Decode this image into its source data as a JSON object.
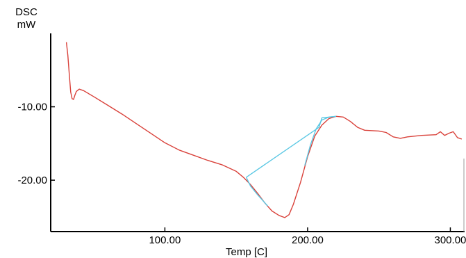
{
  "chart_data": {
    "type": "line",
    "ylabel": "DSC",
    "yunit": "mW",
    "xlabel": "Temp [C]",
    "xlim": [
      20,
      310
    ],
    "ylim": [
      -27,
      0
    ],
    "x_ticks": [
      100,
      200,
      300
    ],
    "x_tick_labels": [
      "100.00",
      "200.00",
      "300.00"
    ],
    "y_ticks": [
      -10,
      -20
    ],
    "y_tick_labels": [
      "-10.00",
      "-20.00"
    ],
    "grid": false,
    "legend": "none",
    "series": [
      {
        "color": "#d9413a",
        "points": [
          [
            31,
            -1.2
          ],
          [
            32,
            -3.0
          ],
          [
            33,
            -5.5
          ],
          [
            34,
            -8.0
          ],
          [
            35,
            -8.9
          ],
          [
            36,
            -9.0
          ],
          [
            37,
            -8.4
          ],
          [
            38,
            -7.9
          ],
          [
            40,
            -7.6
          ],
          [
            43,
            -7.8
          ],
          [
            50,
            -8.6
          ],
          [
            60,
            -9.8
          ],
          [
            70,
            -11.0
          ],
          [
            80,
            -12.3
          ],
          [
            90,
            -13.6
          ],
          [
            100,
            -14.9
          ],
          [
            110,
            -15.9
          ],
          [
            120,
            -16.6
          ],
          [
            130,
            -17.3
          ],
          [
            140,
            -17.9
          ],
          [
            150,
            -18.8
          ],
          [
            155,
            -19.6
          ],
          [
            160,
            -20.6
          ],
          [
            165,
            -21.8
          ],
          [
            170,
            -23.1
          ],
          [
            175,
            -24.2
          ],
          [
            180,
            -24.8
          ],
          [
            184,
            -25.1
          ],
          [
            187,
            -24.7
          ],
          [
            190,
            -23.3
          ],
          [
            195,
            -20.3
          ],
          [
            200,
            -16.8
          ],
          [
            205,
            -14.0
          ],
          [
            210,
            -12.5
          ],
          [
            215,
            -11.6
          ],
          [
            220,
            -11.3
          ],
          [
            225,
            -11.4
          ],
          [
            230,
            -12.0
          ],
          [
            235,
            -12.8
          ],
          [
            240,
            -13.2
          ],
          [
            250,
            -13.3
          ],
          [
            255,
            -13.5
          ],
          [
            260,
            -14.1
          ],
          [
            265,
            -14.3
          ],
          [
            270,
            -14.1
          ],
          [
            280,
            -13.9
          ],
          [
            290,
            -13.8
          ],
          [
            293,
            -13.4
          ],
          [
            296,
            -13.9
          ],
          [
            299,
            -13.6
          ],
          [
            302,
            -13.4
          ],
          [
            305,
            -14.2
          ],
          [
            308,
            -14.4
          ]
        ]
      },
      {
        "color": "#5bc8e4",
        "points": [
          [
            157,
            -19.6
          ],
          [
            208,
            -12.8
          ]
        ]
      },
      {
        "color": "#5bc8e4",
        "points": [
          [
            157,
            -19.6
          ],
          [
            160,
            -20.8
          ],
          [
            165,
            -22.0
          ],
          [
            172,
            -23.5
          ]
        ]
      },
      {
        "color": "#5bc8e4",
        "points": [
          [
            198,
            -18.0
          ],
          [
            202,
            -15.2
          ],
          [
            206,
            -13.0
          ],
          [
            210,
            -11.8
          ],
          [
            215,
            -11.4
          ],
          [
            220,
            -11.3
          ]
        ]
      },
      {
        "color": "#5bc8e4",
        "points": [
          [
            208,
            -12.8
          ],
          [
            210,
            -11.5
          ],
          [
            220,
            -11.3
          ]
        ]
      }
    ]
  }
}
